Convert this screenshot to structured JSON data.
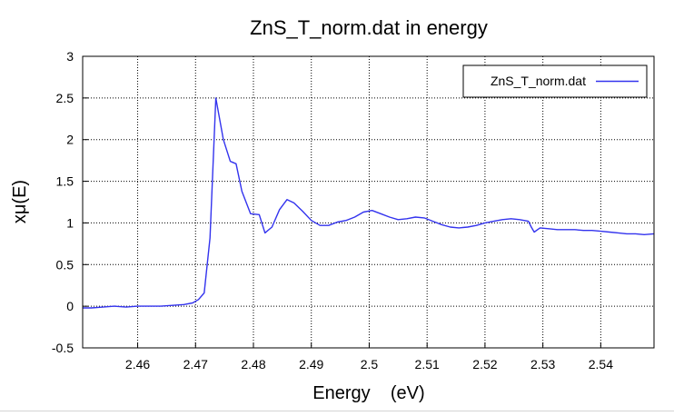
{
  "chart_data": {
    "type": "line",
    "title": "ZnS_T_norm.dat in energy",
    "xlabel": "Energy    (eV)",
    "ylabel": "xμ(E)",
    "xlim": [
      2.4505,
      2.5492
    ],
    "ylim": [
      -0.5,
      3
    ],
    "xticks": [
      "2.46",
      "2.47",
      "2.48",
      "2.49",
      "2.5",
      "2.51",
      "2.52",
      "2.53",
      "2.54"
    ],
    "yticks": [
      "-0.5",
      "0",
      "0.5",
      "1",
      "1.5",
      "2",
      "2.5",
      "3"
    ],
    "grid": true,
    "legend": "top-right",
    "series": [
      {
        "name": "ZnS_T_norm.dat",
        "color": "#3333ee",
        "points": [
          [
            2.4505,
            -0.02
          ],
          [
            2.452,
            -0.02
          ],
          [
            2.454,
            -0.01
          ],
          [
            2.456,
            0.0
          ],
          [
            2.458,
            -0.01
          ],
          [
            2.46,
            0.0
          ],
          [
            2.462,
            0.0
          ],
          [
            2.464,
            0.0
          ],
          [
            2.466,
            0.01
          ],
          [
            2.468,
            0.02
          ],
          [
            2.4695,
            0.04
          ],
          [
            2.4705,
            0.08
          ],
          [
            2.4715,
            0.16
          ],
          [
            2.4725,
            0.82
          ],
          [
            2.4735,
            2.5
          ],
          [
            2.4748,
            2.0
          ],
          [
            2.476,
            1.74
          ],
          [
            2.477,
            1.71
          ],
          [
            2.478,
            1.38
          ],
          [
            2.4795,
            1.11
          ],
          [
            2.481,
            1.1
          ],
          [
            2.482,
            0.88
          ],
          [
            2.4832,
            0.95
          ],
          [
            2.4845,
            1.16
          ],
          [
            2.4858,
            1.28
          ],
          [
            2.487,
            1.24
          ],
          [
            2.4885,
            1.14
          ],
          [
            2.49,
            1.03
          ],
          [
            2.4915,
            0.97
          ],
          [
            2.493,
            0.97
          ],
          [
            2.4945,
            1.01
          ],
          [
            2.496,
            1.03
          ],
          [
            2.4975,
            1.07
          ],
          [
            2.499,
            1.13
          ],
          [
            2.5005,
            1.15
          ],
          [
            2.502,
            1.11
          ],
          [
            2.5035,
            1.07
          ],
          [
            2.505,
            1.04
          ],
          [
            2.5065,
            1.05
          ],
          [
            2.508,
            1.07
          ],
          [
            2.5095,
            1.06
          ],
          [
            2.511,
            1.02
          ],
          [
            2.5125,
            0.98
          ],
          [
            2.514,
            0.95
          ],
          [
            2.5155,
            0.94
          ],
          [
            2.517,
            0.95
          ],
          [
            2.5185,
            0.97
          ],
          [
            2.52,
            1.0
          ],
          [
            2.5215,
            1.02
          ],
          [
            2.523,
            1.04
          ],
          [
            2.5245,
            1.05
          ],
          [
            2.526,
            1.04
          ],
          [
            2.5275,
            1.02
          ],
          [
            2.528,
            0.95
          ],
          [
            2.5285,
            0.89
          ],
          [
            2.5295,
            0.94
          ],
          [
            2.531,
            0.93
          ],
          [
            2.5325,
            0.92
          ],
          [
            2.534,
            0.92
          ],
          [
            2.5355,
            0.92
          ],
          [
            2.537,
            0.91
          ],
          [
            2.5385,
            0.91
          ],
          [
            2.54,
            0.9
          ],
          [
            2.5415,
            0.89
          ],
          [
            2.543,
            0.88
          ],
          [
            2.5445,
            0.87
          ],
          [
            2.546,
            0.87
          ],
          [
            2.5475,
            0.86
          ],
          [
            2.5492,
            0.87
          ]
        ]
      }
    ]
  }
}
